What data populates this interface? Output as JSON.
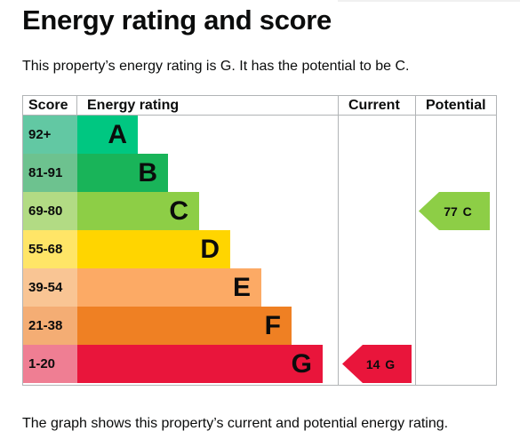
{
  "page": {
    "title": "Energy rating and score",
    "intro": "This property’s energy rating is G. It has the potential to be C.",
    "footer": "The graph shows this property’s current and potential energy rating."
  },
  "epc": {
    "headers": {
      "score": "Score",
      "rating": "Energy rating",
      "current": "Current",
      "potential": "Potential"
    },
    "bands": [
      {
        "range": "92+",
        "letter": "A",
        "color": "#00c781",
        "score_color": "#62c8a3"
      },
      {
        "range": "81-91",
        "letter": "B",
        "color": "#19b459",
        "score_color": "#6dc28f"
      },
      {
        "range": "69-80",
        "letter": "C",
        "color": "#8dce46",
        "score_color": "#b2db84"
      },
      {
        "range": "55-68",
        "letter": "D",
        "color": "#ffd500",
        "score_color": "#ffe567"
      },
      {
        "range": "39-54",
        "letter": "E",
        "color": "#fcaa65",
        "score_color": "#f9c594"
      },
      {
        "range": "21-38",
        "letter": "F",
        "color": "#ef8023",
        "score_color": "#f4ad74"
      },
      {
        "range": "1-20",
        "letter": "G",
        "color": "#e9153b",
        "score_color": "#ef7e93"
      }
    ],
    "current": {
      "score": 14,
      "letter": "G",
      "label": "14 G",
      "color": "#e9153b"
    },
    "potential": {
      "score": 77,
      "letter": "C",
      "label": "77 C",
      "color": "#8dce46"
    }
  }
}
